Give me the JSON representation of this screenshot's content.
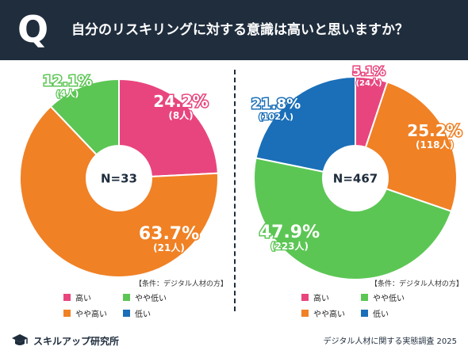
{
  "header": {
    "q_letter": "Q",
    "question": "自分のリスキリングに対する意識は高いと思いますか？"
  },
  "legend_items": [
    {
      "label": "高い",
      "color": "#e8457e"
    },
    {
      "label": "やや低い",
      "color": "#5cc654"
    },
    {
      "label": "やや高い",
      "color": "#f08125"
    },
    {
      "label": "低い",
      "color": "#1a6fb8"
    }
  ],
  "chart_data": [
    {
      "type": "pie",
      "title": "",
      "center_label": "N=33",
      "condition": "【条件：デジタル人材の方】",
      "slices": [
        {
          "label": "高い",
          "percent_text": "24.2%",
          "count_text": "(8人)",
          "value": 24.2,
          "color": "#e8457e"
        },
        {
          "label": "やや高い",
          "percent_text": "63.7%",
          "count_text": "(21人)",
          "value": 63.7,
          "color": "#f08125"
        },
        {
          "label": "やや低い",
          "percent_text": "12.1%",
          "count_text": "(4人)",
          "value": 12.1,
          "color": "#5cc654"
        },
        {
          "label": "低い",
          "percent_text": "",
          "count_text": "",
          "value": 0,
          "color": "#1a6fb8"
        }
      ]
    },
    {
      "type": "pie",
      "title": "",
      "center_label": "N=467",
      "condition": "【条件：デジタル人材の方】",
      "slices": [
        {
          "label": "高い",
          "percent_text": "5.1%",
          "count_text": "(24人)",
          "value": 5.1,
          "color": "#e8457e"
        },
        {
          "label": "やや高い",
          "percent_text": "25.2%",
          "count_text": "(118人)",
          "value": 25.2,
          "color": "#f08125"
        },
        {
          "label": "やや低い",
          "percent_text": "47.9%",
          "count_text": "(223人)",
          "value": 47.9,
          "color": "#5cc654"
        },
        {
          "label": "低い",
          "percent_text": "21.8%",
          "count_text": "(102人)",
          "value": 21.8,
          "color": "#1a6fb8"
        }
      ]
    }
  ],
  "footer": {
    "logo_text": "スキルアップ研究所",
    "source": "デジタル人材に関する実態調査 2025"
  }
}
